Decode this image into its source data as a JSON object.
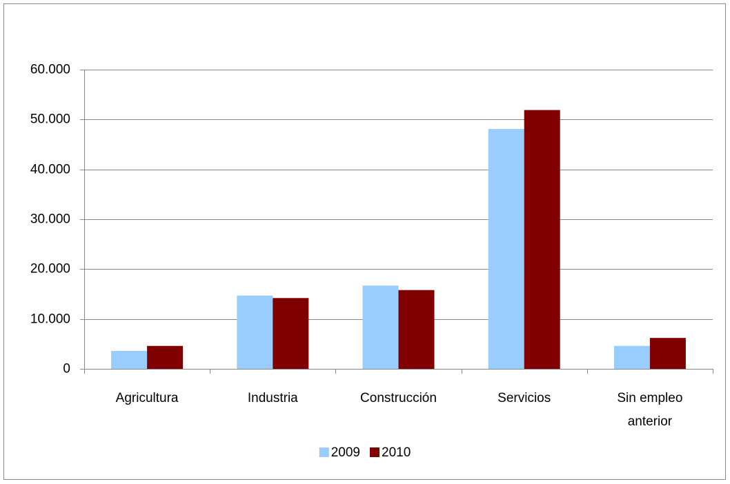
{
  "chart_data": {
    "type": "bar",
    "categories": [
      "Agricultura",
      "Industria",
      "Construcción",
      "Servicios",
      "Sin empleo anterior"
    ],
    "series": [
      {
        "name": "2009",
        "color": "#99ccff",
        "values": [
          3600,
          14700,
          16700,
          48100,
          4600
        ]
      },
      {
        "name": "2010",
        "color": "#800000",
        "values": [
          4600,
          14200,
          15800,
          51900,
          6200
        ]
      }
    ],
    "ylim": [
      0,
      60000
    ],
    "yticks": [
      0,
      {
        "value": 10000,
        "label": "10.000"
      },
      {
        "value": 20000,
        "label": "20.000"
      },
      {
        "value": 30000,
        "label": "30.000"
      },
      {
        "value": 40000,
        "label": "40.000"
      },
      {
        "value": 50000,
        "label": "50.000"
      },
      {
        "value": 60000,
        "label": "60.000"
      }
    ],
    "grid": true,
    "legend": "bottom"
  }
}
